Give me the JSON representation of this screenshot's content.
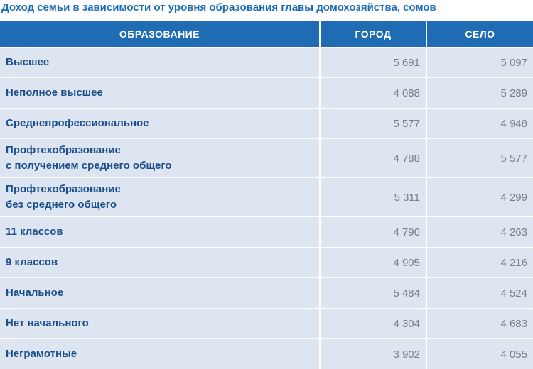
{
  "header": {
    "title": "Доход семьи в зависимости от уровня образования главы домохозяйства, сомов"
  },
  "table": {
    "columns": [
      "ОБРАЗОВАНИЕ",
      "ГОРОД",
      "СЕЛО"
    ],
    "rows": [
      [
        "Высшее",
        "5 691",
        "5 097"
      ],
      [
        "Неполное высшее",
        "4 088",
        "5 289"
      ],
      [
        "Среднепрофессиональное",
        "5 577",
        "4 948"
      ],
      [
        "Профтехобразование\nс получением среднего общего",
        "4 788",
        "5 577"
      ],
      [
        "Профтехобразование\nбез среднего общего",
        "5 311",
        "4 299"
      ],
      [
        "11 классов",
        "4 790",
        "4 263"
      ],
      [
        "9 классов",
        "4 905",
        "4 216"
      ],
      [
        "Начальное",
        "5 484",
        "4 524"
      ],
      [
        "Нет начального",
        "4 304",
        "4 683"
      ],
      [
        "Неграмотные",
        "3 902",
        "4 055"
      ]
    ]
  }
}
